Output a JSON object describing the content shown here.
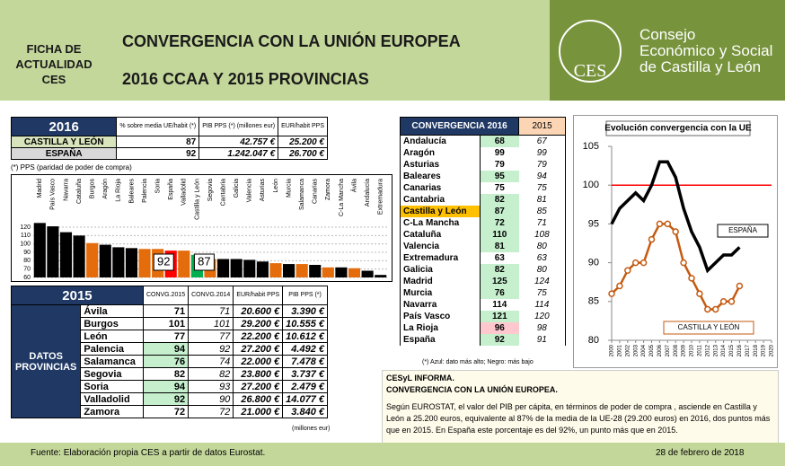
{
  "header": {
    "side_label": "FICHA DE ACTUALIDAD CES",
    "title": "CONVERGENCIA CON LA UNIÓN EUROPEA",
    "subtitle": "2016 CCAA Y 2015 PROVINCIAS",
    "logo_text": "CES",
    "org_line1": "Consejo",
    "org_line2": "Económico y Social",
    "org_line3": "de Castilla y León"
  },
  "table_2016": {
    "title": "2016",
    "columns": [
      "% sobre media UE/habit (*)",
      "PIB PPS (*) (millones eur)",
      "EUR/habit PPS"
    ],
    "rows": [
      [
        "CASTILLA Y LEÓN",
        "87",
        "42.757 €",
        "25.200 €"
      ],
      [
        "ESPAÑA",
        "92",
        "1.242.047 €",
        "26.700 €"
      ]
    ],
    "note": "(*) PPS (paridad de poder de compra)"
  },
  "table_2015": {
    "title": "2015",
    "side_label": "DATOS PROVINCIAS",
    "columns": [
      "CONVG.2015",
      "CONVG.2014",
      "EUR/habit PPS",
      "PIB PPS (*)"
    ],
    "rows": [
      [
        "Ávila",
        "71",
        "71",
        "20.600 €",
        "3.390 €"
      ],
      [
        "Burgos",
        "101",
        "101",
        "29.200 €",
        "10.555 €"
      ],
      [
        "León",
        "77",
        "77",
        "22.200 €",
        "10.612 €"
      ],
      [
        "Palencia",
        "94",
        "92",
        "27.200 €",
        "4.492 €"
      ],
      [
        "Salamanca",
        "76",
        "74",
        "22.000 €",
        "7.478 €"
      ],
      [
        "Segovia",
        "82",
        "82",
        "23.800 €",
        "3.737 €"
      ],
      [
        "Soria",
        "94",
        "93",
        "27.200 €",
        "2.479 €"
      ],
      [
        "Valladolid",
        "92",
        "90",
        "26.800 €",
        "14.077 €"
      ],
      [
        "Zamora",
        "72",
        "72",
        "21.000 €",
        "3.840 €"
      ]
    ],
    "note": "(millones eur)"
  },
  "table_ccaa": {
    "columns": [
      "CONVERGENCIA 2016",
      "2015"
    ],
    "rows": [
      [
        "Andalucía",
        "68",
        "67"
      ],
      [
        "Aragón",
        "99",
        "99"
      ],
      [
        "Asturias",
        "79",
        "79"
      ],
      [
        "Baleares",
        "95",
        "94"
      ],
      [
        "Canarias",
        "75",
        "75"
      ],
      [
        "Cantabria",
        "82",
        "81"
      ],
      [
        "Castilla y León",
        "87",
        "85"
      ],
      [
        "C-La Mancha",
        "72",
        "71"
      ],
      [
        "Cataluña",
        "110",
        "108"
      ],
      [
        "Valencia",
        "81",
        "80"
      ],
      [
        "Extremadura",
        "63",
        "63"
      ],
      [
        "Galicia",
        "82",
        "80"
      ],
      [
        "Madrid",
        "125",
        "124"
      ],
      [
        "Murcia",
        "76",
        "75"
      ],
      [
        "Navarra",
        "114",
        "114"
      ],
      [
        "País Vasco",
        "121",
        "120"
      ],
      [
        "La Rioja",
        "96",
        "98"
      ],
      [
        "España",
        "92",
        "91"
      ]
    ],
    "note": "(*) Azul: dato más alto; Negro: más bajo"
  },
  "chart_data": [
    {
      "type": "bar",
      "categories": [
        "Madrid",
        "País Vasco",
        "Navarra",
        "Cataluña",
        "Burgos",
        "Aragón",
        "La Rioja",
        "Baleares",
        "Palencia",
        "Soria",
        "España",
        "Valladolid",
        "Castilla y León",
        "Segovia",
        "Cantabria",
        "Galicia",
        "Valencia",
        "Asturias",
        "León",
        "Murcia",
        "Salamanca",
        "Canarias",
        "Zamora",
        "C-La Mancha",
        "Ávila",
        "Andalucía",
        "Extremadura"
      ],
      "values": [
        125,
        121,
        114,
        110,
        101,
        99,
        96,
        95,
        94,
        94,
        92,
        92,
        87,
        82,
        82,
        82,
        81,
        79,
        77,
        76,
        76,
        75,
        72,
        72,
        71,
        68,
        63
      ],
      "colors": [
        "#000000",
        "#000000",
        "#000000",
        "#000000",
        "#e46c0a",
        "#000000",
        "#000000",
        "#000000",
        "#e46c0a",
        "#e46c0a",
        "#ff0000",
        "#e46c0a",
        "#00b050",
        "#e46c0a",
        "#000000",
        "#000000",
        "#000000",
        "#000000",
        "#e46c0a",
        "#000000",
        "#e46c0a",
        "#000000",
        "#e46c0a",
        "#000000",
        "#e46c0a",
        "#000000",
        "#000000"
      ],
      "ylim": [
        60,
        120
      ],
      "yticks": [
        60,
        70,
        80,
        90,
        100,
        110,
        120
      ],
      "annotations": [
        "92",
        "87"
      ]
    },
    {
      "type": "line",
      "title": "Evolución convergencia con la UE",
      "x": [
        2000,
        2001,
        2002,
        2003,
        2004,
        2005,
        2006,
        2007,
        2008,
        2009,
        2010,
        2011,
        2012,
        2013,
        2014,
        2015,
        2016
      ],
      "series": [
        {
          "name": "ESPAÑA",
          "color": "#000000",
          "values": [
            95,
            97,
            98,
            99,
            98,
            100,
            103,
            103,
            101,
            97,
            94,
            92,
            89,
            90,
            91,
            91,
            92
          ]
        },
        {
          "name": "CASTILLA Y LEÓN",
          "color": "#c55a11",
          "values": [
            86,
            87,
            89,
            90,
            90,
            93,
            95,
            95,
            94,
            90,
            88,
            86,
            84,
            84,
            85,
            85,
            87
          ]
        }
      ],
      "reference_value": 100,
      "reference_color": "#ff0000",
      "xlim": [
        2000,
        2020
      ],
      "xticks": [
        2000,
        2001,
        2002,
        2003,
        2004,
        2005,
        2006,
        2007,
        2008,
        2009,
        2010,
        2011,
        2012,
        2013,
        2014,
        2015,
        2016,
        2017,
        2018,
        2019,
        2020
      ],
      "ylim": [
        80,
        105
      ],
      "yticks": [
        80,
        85,
        90,
        95,
        100,
        105
      ]
    }
  ],
  "info": {
    "heading1": "CESyL INFORMA.",
    "heading2": "CONVERGENCIA CON LA UNIÓN EUROPEA.",
    "body": "Según EUROSTAT, el valor del PIB per cápita, en términos de poder de compra , asciende en Castilla y León a 25.200 euros, equivalente al 87% de la media de la UE-28 (29.200 euros) en 2016, dos puntos más que en 2015. En España este porcentaje es del 92%, un punto más que en 2015."
  },
  "footer": {
    "source": "Fuente: Elaboración propia CES a partir de datos Eurostat.",
    "date": "28 de febrero de 2018"
  }
}
